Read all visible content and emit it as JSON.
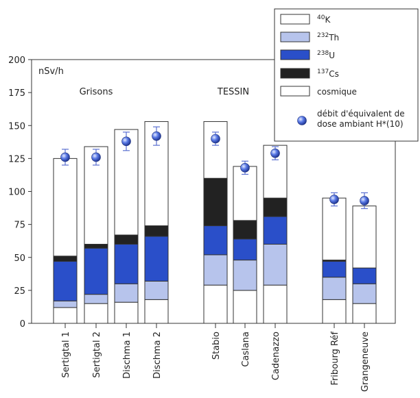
{
  "chart_data": {
    "type": "bar",
    "stacked": true,
    "ylabel": "nSv/h",
    "ylim": [
      0,
      200
    ],
    "yticks": [
      0,
      25,
      50,
      75,
      100,
      125,
      150,
      175,
      200
    ],
    "groups": [
      {
        "name": "Grisons",
        "categories": [
          "Sertigtal 1",
          "Sertigtal 2",
          "Dischma 1",
          "Dischma 2"
        ]
      },
      {
        "name": "TESSIN",
        "categories": [
          "Stabio",
          "Caslana",
          "Cadenazzo"
        ]
      },
      {
        "name": "",
        "categories": [
          "Fribourg Réf",
          "Grangeneuve"
        ]
      }
    ],
    "categories": [
      "Sertigtal 1",
      "Sertigtal 2",
      "Dischma 1",
      "Dischma 2",
      "Stabio",
      "Caslana",
      "Cadenazzo",
      "Fribourg Réf",
      "Grangeneuve"
    ],
    "series": [
      {
        "name": "cosmique",
        "color": "#ffffff",
        "values": [
          12,
          15,
          16,
          18,
          29,
          25,
          29,
          18,
          15
        ]
      },
      {
        "name": "232Th",
        "color": "#b7c4ec",
        "values": [
          5,
          7,
          14,
          14,
          23,
          23,
          31,
          17,
          15
        ]
      },
      {
        "name": "238U",
        "color": "#2a4fc9",
        "values": [
          30,
          35,
          30,
          34,
          22,
          16,
          21,
          12,
          12
        ]
      },
      {
        "name": "137Cs",
        "color": "#222222",
        "values": [
          4,
          3,
          7,
          8,
          36,
          14,
          14,
          1,
          0
        ]
      },
      {
        "name": "40K",
        "color": "#ffffff",
        "values": [
          74,
          74,
          80,
          79,
          43,
          41,
          40,
          47,
          47
        ]
      }
    ],
    "ambient_dose": {
      "name": "débit d'équivalent de dose ambiant H*(10)",
      "values": [
        126,
        126,
        138,
        142,
        140,
        118,
        129,
        94,
        93
      ],
      "errors": [
        6,
        6,
        7,
        7,
        5,
        5,
        5,
        5,
        6
      ]
    },
    "legend": {
      "placement": "top-right",
      "entries": [
        {
          "symbol": "box",
          "color": "#ffffff",
          "sup": "40",
          "base": "K"
        },
        {
          "symbol": "box",
          "color": "#b7c4ec",
          "sup": "232",
          "base": "Th"
        },
        {
          "symbol": "box",
          "color": "#2a4fc9",
          "sup": "238",
          "base": "U"
        },
        {
          "symbol": "box",
          "color": "#222222",
          "sup": "137",
          "base": "Cs"
        },
        {
          "symbol": "box",
          "color": "#ffffff",
          "sup": "",
          "base": "cosmique"
        },
        {
          "symbol": "marker",
          "color": "#3a5bd8",
          "sup": "",
          "base": "débit d'équivalent de",
          "base2": "dose ambiant H*(10)"
        }
      ]
    }
  }
}
